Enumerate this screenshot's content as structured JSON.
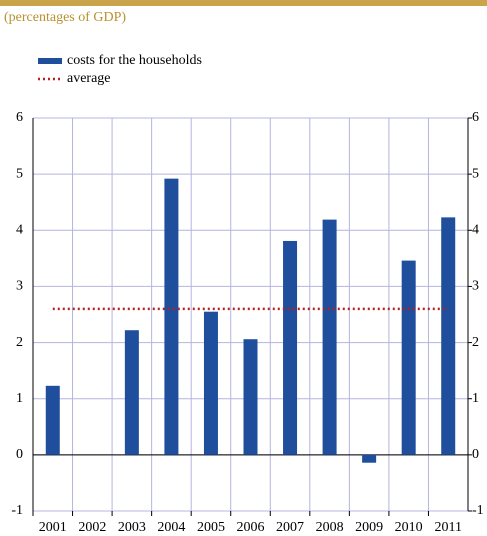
{
  "chart_data": {
    "type": "bar",
    "subtitle": "(percentages of GDP)",
    "categories": [
      "2001",
      "2002",
      "2003",
      "2004",
      "2005",
      "2006",
      "2007",
      "2008",
      "2009",
      "2010",
      "2011"
    ],
    "series": [
      {
        "name": "costs for the households",
        "color": "#1f4e9c",
        "type": "bar",
        "values": [
          1.23,
          0,
          2.22,
          4.92,
          2.55,
          2.06,
          3.81,
          4.19,
          -0.14,
          3.46,
          4.23
        ]
      },
      {
        "name": "average",
        "color": "#b22222",
        "type": "line",
        "values": [
          2.6,
          2.6,
          2.6,
          2.6,
          2.6,
          2.6,
          2.6,
          2.6,
          2.6,
          2.6,
          2.6
        ]
      }
    ],
    "ylim": [
      -1,
      6
    ],
    "yticks": [
      -1,
      0,
      1,
      2,
      3,
      4,
      5,
      6
    ],
    "y2lim": [
      -1,
      6
    ],
    "y2ticks": [
      -1,
      0,
      1,
      2,
      3,
      4,
      5,
      6
    ],
    "grid": true
  }
}
